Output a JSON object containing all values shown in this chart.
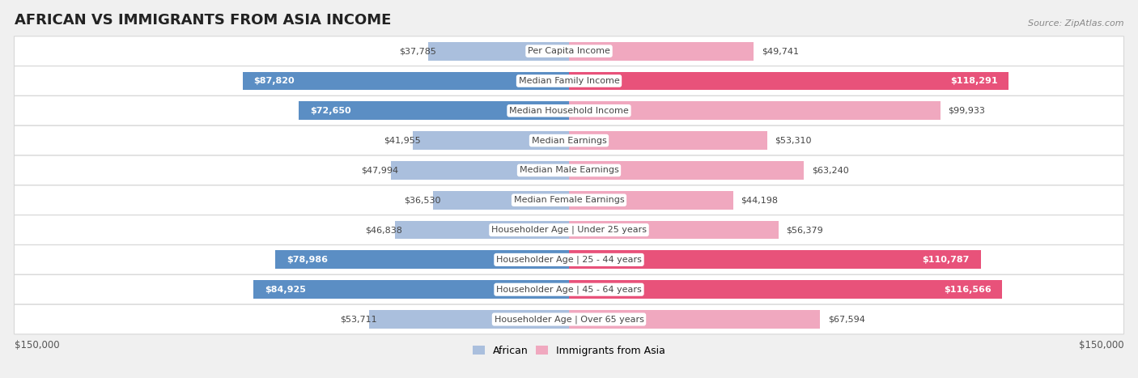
{
  "title": "AFRICAN VS IMMIGRANTS FROM ASIA INCOME",
  "source": "Source: ZipAtlas.com",
  "categories": [
    "Per Capita Income",
    "Median Family Income",
    "Median Household Income",
    "Median Earnings",
    "Median Male Earnings",
    "Median Female Earnings",
    "Householder Age | Under 25 years",
    "Householder Age | 25 - 44 years",
    "Householder Age | 45 - 64 years",
    "Householder Age | Over 65 years"
  ],
  "african_values": [
    37785,
    87820,
    72650,
    41955,
    47994,
    36530,
    46838,
    78986,
    84925,
    53711
  ],
  "asian_values": [
    49741,
    118291,
    99933,
    53310,
    63240,
    44198,
    56379,
    110787,
    116566,
    67594
  ],
  "african_labels": [
    "$37,785",
    "$87,820",
    "$72,650",
    "$41,955",
    "$47,994",
    "$36,530",
    "$46,838",
    "$78,986",
    "$84,925",
    "$53,711"
  ],
  "asian_labels": [
    "$49,741",
    "$118,291",
    "$99,933",
    "$53,310",
    "$63,240",
    "$44,198",
    "$56,379",
    "$110,787",
    "$116,566",
    "$67,594"
  ],
  "african_color_light": "#aabfdd",
  "african_color_dark": "#5b8ec4",
  "asian_color_light": "#f0a8bf",
  "asian_color_dark": "#e8527a",
  "max_value": 150000,
  "background_color": "#f0f0f0",
  "row_bg_color": "#ffffff",
  "row_border_color": "#d8d8d8",
  "label_dark": "#444444",
  "label_white": "#ffffff",
  "white_threshold_african": 70000,
  "white_threshold_asian": 100000,
  "title_fontsize": 13,
  "source_fontsize": 8,
  "bar_label_fontsize": 8,
  "cat_label_fontsize": 8
}
